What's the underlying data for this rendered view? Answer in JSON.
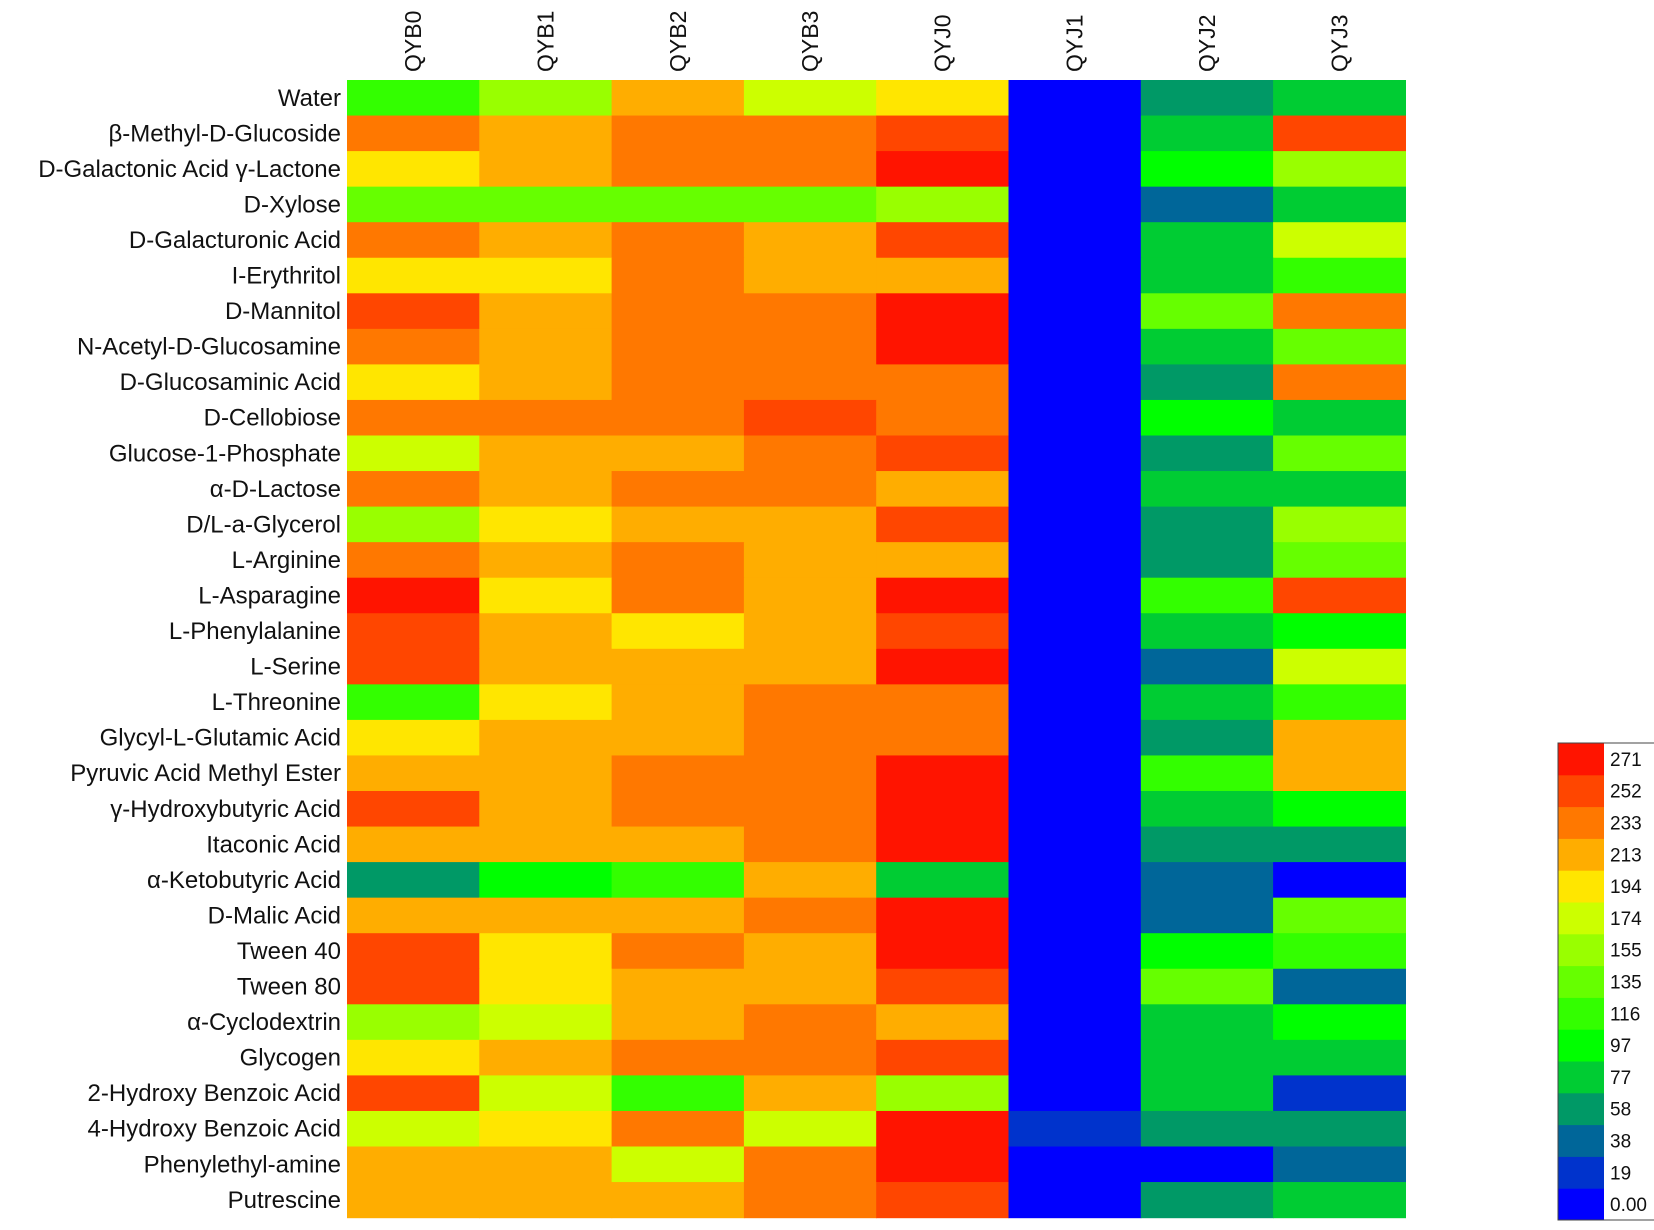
{
  "chart_data": {
    "type": "heatmap",
    "title": "",
    "columns": [
      "QYB0",
      "QYB1",
      "QYB2",
      "QYB3",
      "QYJ0",
      "QYJ1",
      "QYJ2",
      "QYJ3"
    ],
    "rows": [
      "Water",
      "β-Methyl-D-Glucoside",
      "D-Galactonic Acid γ-Lactone",
      "D-Xylose",
      "D-Galacturonic Acid",
      "I-Erythritol",
      "D-Mannitol",
      "N-Acetyl-D-Glucosamine",
      "D-Glucosaminic Acid",
      "D-Cellobiose",
      "Glucose-1-Phosphate",
      "α-D-Lactose",
      "D/L-a-Glycerol",
      "L-Arginine",
      "L-Asparagine",
      "L-Phenylalanine",
      "L-Serine",
      "L-Threonine",
      "Glycyl-L-Glutamic Acid",
      "Pyruvic Acid Methyl Ester",
      "γ-Hydroxybutyric Acid",
      "Itaconic Acid",
      "α-Ketobutyric Acid",
      "D-Malic Acid",
      "Tween 40",
      "Tween 80",
      "α-Cyclodextrin",
      "Glycogen",
      "2-Hydroxy Benzoic Acid",
      "4-Hydroxy Benzoic Acid",
      "Phenylethyl-amine",
      "Putrescine"
    ],
    "values": [
      [
        120,
        160,
        215,
        180,
        195,
        0,
        60,
        85
      ],
      [
        235,
        215,
        235,
        235,
        255,
        0,
        85,
        255
      ],
      [
        195,
        215,
        235,
        235,
        275,
        0,
        100,
        160
      ],
      [
        140,
        140,
        140,
        140,
        160,
        0,
        40,
        85
      ],
      [
        235,
        215,
        235,
        215,
        255,
        0,
        85,
        180
      ],
      [
        195,
        195,
        235,
        215,
        215,
        0,
        85,
        120
      ],
      [
        255,
        215,
        235,
        235,
        275,
        0,
        140,
        235
      ],
      [
        235,
        215,
        235,
        235,
        275,
        0,
        85,
        140
      ],
      [
        195,
        215,
        235,
        235,
        235,
        0,
        60,
        235
      ],
      [
        235,
        235,
        235,
        255,
        235,
        0,
        100,
        85
      ],
      [
        180,
        215,
        215,
        235,
        255,
        0,
        60,
        140
      ],
      [
        235,
        215,
        235,
        235,
        215,
        0,
        85,
        85
      ],
      [
        160,
        195,
        215,
        215,
        255,
        0,
        60,
        160
      ],
      [
        235,
        215,
        235,
        215,
        215,
        0,
        60,
        140
      ],
      [
        275,
        195,
        235,
        215,
        275,
        0,
        120,
        255
      ],
      [
        255,
        215,
        195,
        215,
        255,
        0,
        85,
        100
      ],
      [
        255,
        215,
        215,
        215,
        275,
        0,
        40,
        180
      ],
      [
        120,
        195,
        215,
        235,
        235,
        0,
        85,
        120
      ],
      [
        195,
        215,
        215,
        235,
        235,
        0,
        60,
        215
      ],
      [
        215,
        215,
        235,
        235,
        275,
        0,
        120,
        215
      ],
      [
        255,
        215,
        235,
        235,
        275,
        0,
        85,
        100
      ],
      [
        215,
        215,
        215,
        235,
        275,
        0,
        60,
        60
      ],
      [
        60,
        100,
        120,
        215,
        85,
        0,
        40,
        0
      ],
      [
        215,
        215,
        215,
        235,
        275,
        0,
        40,
        140
      ],
      [
        255,
        195,
        235,
        215,
        275,
        0,
        100,
        120
      ],
      [
        255,
        195,
        215,
        215,
        255,
        0,
        140,
        40
      ],
      [
        160,
        180,
        215,
        235,
        215,
        0,
        85,
        100
      ],
      [
        195,
        215,
        235,
        235,
        255,
        0,
        85,
        85
      ],
      [
        255,
        180,
        120,
        215,
        160,
        0,
        85,
        20
      ],
      [
        180,
        195,
        235,
        180,
        275,
        20,
        60,
        60
      ],
      [
        215,
        215,
        180,
        235,
        275,
        0,
        0,
        40
      ],
      [
        215,
        215,
        215,
        235,
        255,
        0,
        60,
        85
      ]
    ],
    "colorscale": {
      "tick_labels": [
        "0.00",
        "19",
        "38",
        "58",
        "77",
        "97",
        "116",
        "135",
        "155",
        "174",
        "194",
        "213",
        "233",
        "252",
        "271"
      ],
      "thresholds": [
        0,
        19,
        38,
        58,
        77,
        97,
        116,
        135,
        155,
        174,
        194,
        213,
        233,
        252,
        271
      ],
      "colors": [
        "#0000ff",
        "#0033cc",
        "#006699",
        "#009966",
        "#00cc33",
        "#00ff00",
        "#33ff00",
        "#66ff00",
        "#99ff00",
        "#ccff00",
        "#ffe600",
        "#ffad00",
        "#ff7800",
        "#ff4600",
        "#ff1400"
      ]
    }
  }
}
